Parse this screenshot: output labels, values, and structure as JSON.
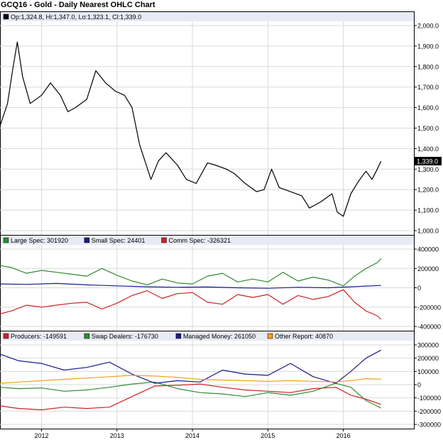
{
  "title": "GCQ16 - Gold - Daily Nearest OHLC Chart",
  "colors": {
    "price": "#000000",
    "large_spec": "#2e8b2e",
    "small_spec": "#1a1a8c",
    "comm_spec": "#cc2222",
    "producers": "#cc2222",
    "swap_dealers": "#2e8b2e",
    "managed_money": "#1a1a8c",
    "other_report": "#f0a020",
    "legend_bg": "#e8ebf5",
    "grid": "#d9d9d9"
  },
  "chart_data": [
    {
      "type": "line",
      "panel": "price",
      "legend_text": "Op:1,324.8, Hi:1,347.0, Lo:1,323.1, Cl:1,339.0",
      "last_value_label": "1,339.0",
      "last_value": 1339.0,
      "ylim": [
        1000,
        2000
      ],
      "y_ticks": [
        "2,000.0",
        "1,900.0",
        "1,800.0",
        "1,700.0",
        "1,600.0",
        "1,500.0",
        "1,400.0",
        "1,300.0",
        "1,200.0",
        "1,100.0",
        "1,000.0"
      ],
      "y_tick_values": [
        2000,
        1900,
        1800,
        1700,
        1600,
        1500,
        1400,
        1300,
        1200,
        1100,
        1000
      ],
      "x": [
        2011.45,
        2011.55,
        2011.62,
        2011.68,
        2011.75,
        2011.85,
        2012.0,
        2012.12,
        2012.25,
        2012.35,
        2012.45,
        2012.6,
        2012.72,
        2012.85,
        2012.98,
        2013.1,
        2013.2,
        2013.3,
        2013.45,
        2013.55,
        2013.65,
        2013.8,
        2013.92,
        2014.05,
        2014.2,
        2014.3,
        2014.45,
        2014.55,
        2014.7,
        2014.85,
        2014.95,
        2015.05,
        2015.15,
        2015.3,
        2015.45,
        2015.55,
        2015.7,
        2015.85,
        2015.92,
        2016.0,
        2016.1,
        2016.2,
        2016.3,
        2016.38,
        2016.45,
        2016.5
      ],
      "y": [
        1510,
        1620,
        1790,
        1920,
        1750,
        1620,
        1660,
        1720,
        1660,
        1580,
        1600,
        1640,
        1780,
        1720,
        1680,
        1660,
        1600,
        1420,
        1250,
        1340,
        1380,
        1320,
        1250,
        1230,
        1330,
        1320,
        1300,
        1280,
        1230,
        1190,
        1200,
        1300,
        1210,
        1190,
        1170,
        1110,
        1140,
        1180,
        1090,
        1070,
        1180,
        1240,
        1290,
        1250,
        1300,
        1339
      ]
    },
    {
      "type": "line",
      "panel": "cot",
      "ylim": [
        -400000,
        400000
      ],
      "y_ticks": [
        "400000",
        "200000",
        "0",
        "-200000",
        "-400000"
      ],
      "y_tick_values": [
        400000,
        200000,
        0,
        -200000,
        -400000
      ],
      "series": [
        {
          "name": "Large Spec",
          "legend_text": "Large Spec: 301920",
          "color_key": "large_spec",
          "x": [
            2011.45,
            2011.6,
            2011.8,
            2012.0,
            2012.2,
            2012.4,
            2012.6,
            2012.8,
            2013.0,
            2013.2,
            2013.4,
            2013.6,
            2013.8,
            2014.0,
            2014.2,
            2014.4,
            2014.6,
            2014.8,
            2015.0,
            2015.2,
            2015.4,
            2015.6,
            2015.8,
            2016.0,
            2016.15,
            2016.3,
            2016.45,
            2016.5
          ],
          "y": [
            230000,
            210000,
            150000,
            180000,
            160000,
            140000,
            120000,
            200000,
            130000,
            70000,
            30000,
            90000,
            50000,
            40000,
            120000,
            150000,
            60000,
            90000,
            60000,
            160000,
            70000,
            110000,
            80000,
            20000,
            120000,
            200000,
            260000,
            301920
          ]
        },
        {
          "name": "Small Spec",
          "legend_text": "Small Spec: 24401",
          "color_key": "small_spec",
          "x": [
            2011.45,
            2011.8,
            2012.2,
            2012.6,
            2013.0,
            2013.4,
            2013.8,
            2014.2,
            2014.6,
            2015.0,
            2015.4,
            2015.8,
            2016.1,
            2016.5
          ],
          "y": [
            40000,
            35000,
            45000,
            30000,
            20000,
            10000,
            5000,
            8000,
            0,
            -5000,
            5000,
            0,
            10000,
            24401
          ]
        },
        {
          "name": "Comm Spec",
          "legend_text": "Comm Spec: -326321",
          "color_key": "comm_spec",
          "x": [
            2011.45,
            2011.6,
            2011.8,
            2012.0,
            2012.2,
            2012.4,
            2012.6,
            2012.8,
            2013.0,
            2013.2,
            2013.4,
            2013.6,
            2013.8,
            2014.0,
            2014.2,
            2014.4,
            2014.6,
            2014.8,
            2015.0,
            2015.2,
            2015.4,
            2015.6,
            2015.8,
            2016.0,
            2016.15,
            2016.3,
            2016.45,
            2016.5
          ],
          "y": [
            -270000,
            -240000,
            -180000,
            -200000,
            -180000,
            -160000,
            -150000,
            -220000,
            -160000,
            -80000,
            -30000,
            -110000,
            -60000,
            -50000,
            -150000,
            -170000,
            -70000,
            -100000,
            -70000,
            -170000,
            -80000,
            -120000,
            -90000,
            -20000,
            -150000,
            -240000,
            -290000,
            -326321
          ]
        }
      ]
    },
    {
      "type": "line",
      "panel": "cot_disaggregated",
      "ylim": [
        -300000,
        300000
      ],
      "y_ticks": [
        "300000",
        "200000",
        "100000",
        "0",
        "-100000",
        "-200000",
        "-300000"
      ],
      "y_tick_values": [
        300000,
        200000,
        100000,
        0,
        -100000,
        -200000,
        -300000
      ],
      "series": [
        {
          "name": "Producers",
          "legend_text": "Producers: -149591",
          "color_key": "producers",
          "x": [
            2011.45,
            2011.7,
            2012.0,
            2012.3,
            2012.6,
            2012.9,
            2013.2,
            2013.5,
            2013.8,
            2014.1,
            2014.4,
            2014.7,
            2015.0,
            2015.3,
            2015.6,
            2015.9,
            2016.1,
            2016.3,
            2016.5
          ],
          "y": [
            -160000,
            -180000,
            -190000,
            -170000,
            -180000,
            -170000,
            -90000,
            -10000,
            -5000,
            5000,
            -20000,
            -40000,
            -50000,
            -60000,
            -30000,
            -20000,
            -80000,
            -110000,
            -149591
          ]
        },
        {
          "name": "Swap Dealers",
          "legend_text": "Swap Dealers: -176730",
          "color_key": "swap_dealers",
          "x": [
            2011.45,
            2011.7,
            2012.0,
            2012.3,
            2012.6,
            2012.9,
            2013.2,
            2013.5,
            2013.8,
            2014.1,
            2014.4,
            2014.7,
            2015.0,
            2015.3,
            2015.6,
            2015.9,
            2016.1,
            2016.3,
            2016.5
          ],
          "y": [
            -20000,
            -30000,
            -25000,
            -50000,
            -40000,
            -20000,
            5000,
            20000,
            -30000,
            -60000,
            -70000,
            -90000,
            -60000,
            -80000,
            -50000,
            10000,
            -20000,
            -120000,
            -176730
          ]
        },
        {
          "name": "Managed Money",
          "legend_text": "Managed Money: 261050",
          "color_key": "managed_money",
          "x": [
            2011.45,
            2011.7,
            2012.0,
            2012.3,
            2012.6,
            2012.9,
            2013.2,
            2013.5,
            2013.8,
            2014.1,
            2014.4,
            2014.7,
            2015.0,
            2015.3,
            2015.6,
            2015.9,
            2016.1,
            2016.3,
            2016.5
          ],
          "y": [
            230000,
            180000,
            160000,
            110000,
            130000,
            170000,
            80000,
            10000,
            30000,
            20000,
            110000,
            80000,
            70000,
            160000,
            60000,
            10000,
            100000,
            200000,
            261050
          ]
        },
        {
          "name": "Other Report",
          "legend_text": "Other Report: 40870",
          "color_key": "other_report",
          "x": [
            2011.45,
            2011.7,
            2012.0,
            2012.3,
            2012.6,
            2012.9,
            2013.2,
            2013.5,
            2013.8,
            2014.1,
            2014.4,
            2014.7,
            2015.0,
            2015.3,
            2015.6,
            2015.9,
            2016.1,
            2016.3,
            2016.5
          ],
          "y": [
            10000,
            20000,
            30000,
            40000,
            50000,
            60000,
            70000,
            65000,
            55000,
            40000,
            35000,
            30000,
            25000,
            30000,
            25000,
            20000,
            30000,
            45000,
            40870
          ]
        }
      ]
    }
  ],
  "x_axis": {
    "labels": [
      "2012",
      "2013",
      "2014",
      "2015",
      "2016"
    ],
    "values": [
      2012,
      2013,
      2014,
      2015,
      2016
    ],
    "xlim": [
      2011.45,
      2016.7
    ]
  }
}
